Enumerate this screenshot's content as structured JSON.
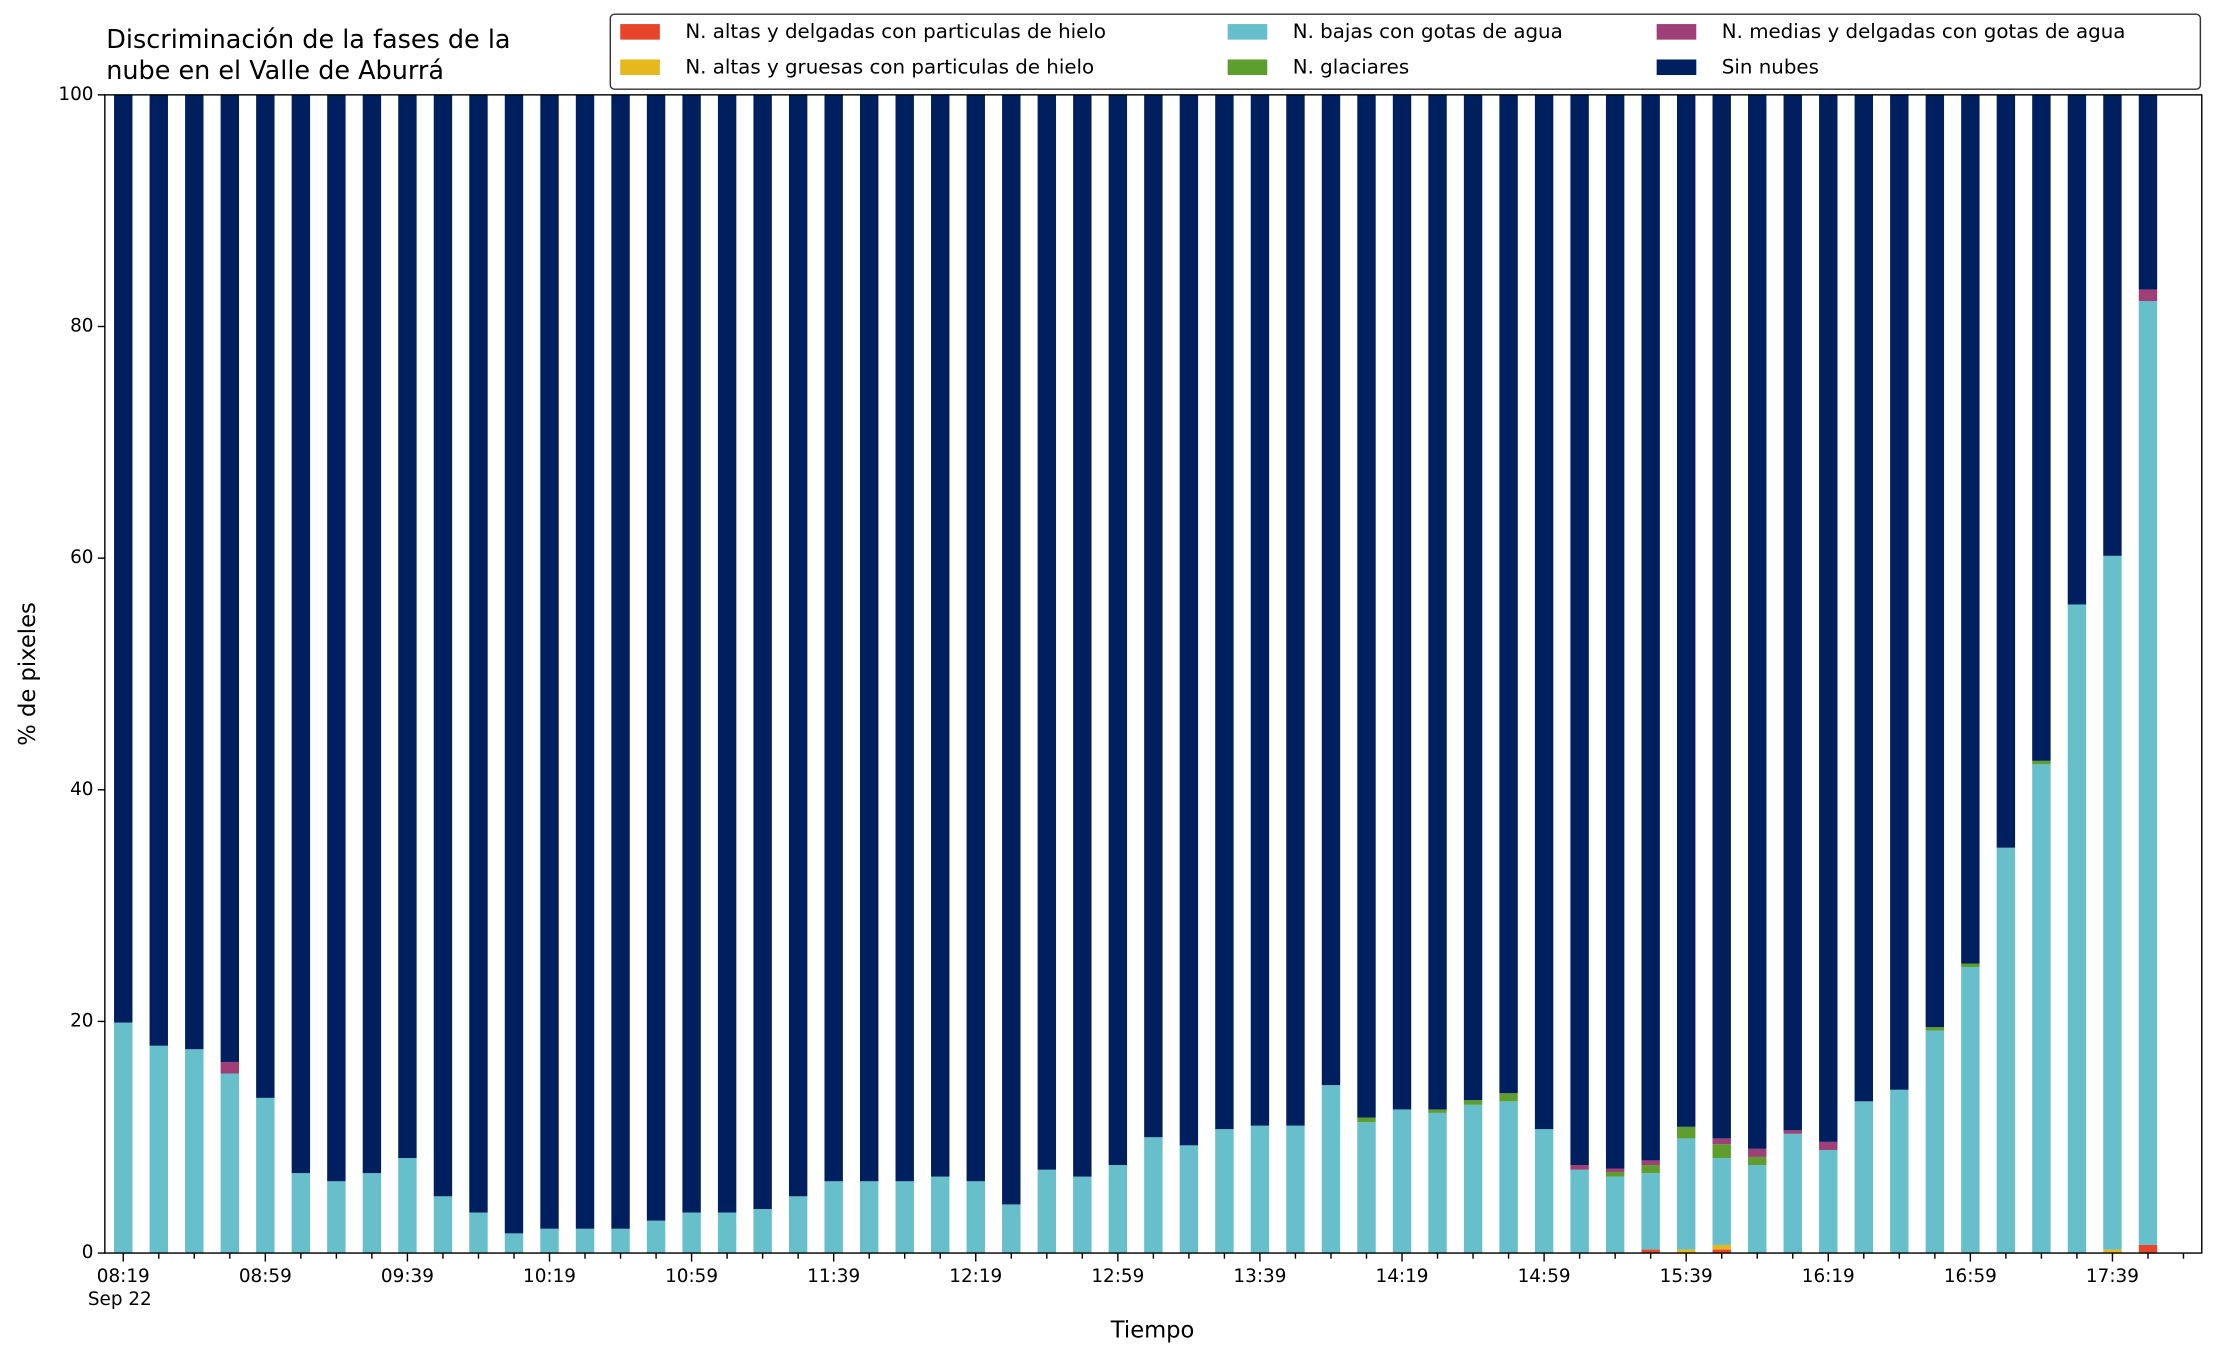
{
  "chart_data": {
    "type": "stacked_bar",
    "title": [
      "Discriminación de la fases de la",
      "nube en el Valle de Aburrá"
    ],
    "xlabel": "Tiempo",
    "ylabel": "% de pixeles",
    "categories": [
      "08:19",
      null,
      null,
      null,
      "08:59",
      null,
      null,
      null,
      "09:39",
      null,
      null,
      null,
      "10:19",
      null,
      null,
      null,
      "10:59",
      null,
      null,
      null,
      "11:39",
      null,
      null,
      null,
      "12:19",
      null,
      null,
      null,
      "12:59",
      null,
      null,
      null,
      "13:39",
      null,
      null,
      null,
      "14:19",
      null,
      null,
      null,
      "14:59",
      null,
      null,
      null,
      "15:39",
      null,
      null,
      null,
      "16:19",
      null,
      null,
      null,
      "16:59",
      null,
      null,
      null,
      "17:39",
      null
    ],
    "date_label": "Sep 22",
    "ylim": [
      0,
      100
    ],
    "yticks": [
      0,
      20,
      40,
      60,
      80,
      100
    ],
    "series": [
      {
        "name": "N. altas y delgadas con particulas de hielo",
        "color": "#e8462a",
        "values": [
          0,
          0,
          0,
          0,
          0,
          0,
          0,
          0,
          0,
          0,
          0,
          0,
          0,
          0,
          0,
          0,
          0,
          0,
          0,
          0,
          0,
          0,
          0,
          0,
          0,
          0,
          0,
          0,
          0,
          0,
          0,
          0,
          0,
          0,
          0,
          0,
          0,
          0,
          0,
          0,
          0,
          0,
          0,
          0.3,
          0,
          0.3,
          0,
          0,
          0,
          0,
          0,
          0,
          0,
          0,
          0,
          0,
          0,
          0.7
        ]
      },
      {
        "name": "N. altas y gruesas con particulas de hielo",
        "color": "#e6b81e",
        "values": [
          0,
          0,
          0,
          0,
          0,
          0,
          0,
          0,
          0,
          0,
          0,
          0,
          0,
          0,
          0,
          0,
          0,
          0,
          0,
          0,
          0,
          0,
          0,
          0,
          0,
          0,
          0,
          0,
          0,
          0,
          0,
          0,
          0,
          0,
          0,
          0,
          0,
          0,
          0,
          0,
          0,
          0,
          0,
          0,
          0.3,
          0.4,
          0,
          0,
          0,
          0,
          0,
          0,
          0,
          0,
          0,
          0,
          0.3,
          0
        ]
      },
      {
        "name": "N. bajas con gotas de agua",
        "color": "#66bfcb",
        "values": [
          19.9,
          17.9,
          17.6,
          15.5,
          13.4,
          6.9,
          6.2,
          6.9,
          8.2,
          4.9,
          3.5,
          1.7,
          2.1,
          2.1,
          2.1,
          2.8,
          3.5,
          3.5,
          3.8,
          4.9,
          6.2,
          6.2,
          6.2,
          6.6,
          6.2,
          4.2,
          7.2,
          6.6,
          7.6,
          10.0,
          9.3,
          10.7,
          11.0,
          11.0,
          14.5,
          11.3,
          12.4,
          12.1,
          12.8,
          13.1,
          10.7,
          7.2,
          6.6,
          6.6,
          9.6,
          7.5,
          7.6,
          10.3,
          8.9,
          13.1,
          14.1,
          19.2,
          24.7,
          35.0,
          42.2,
          56.0,
          59.9,
          81.5
        ]
      },
      {
        "name": "N. glaciares",
        "color": "#5d9e2f",
        "values": [
          0,
          0,
          0,
          0,
          0,
          0,
          0,
          0,
          0,
          0,
          0,
          0,
          0,
          0,
          0,
          0,
          0,
          0,
          0,
          0,
          0,
          0,
          0,
          0,
          0,
          0,
          0,
          0,
          0,
          0,
          0,
          0,
          0,
          0,
          0,
          0.4,
          0,
          0.3,
          0.4,
          0.7,
          0,
          0,
          0.4,
          0.7,
          1.0,
          1.2,
          0.7,
          0,
          0,
          0,
          0,
          0.3,
          0.3,
          0,
          0.3,
          0,
          0,
          0
        ]
      },
      {
        "name": "N. medias y delgadas con gotas de agua",
        "color": "#9e3f77",
        "values": [
          0,
          0,
          0,
          1.0,
          0,
          0,
          0,
          0,
          0,
          0,
          0,
          0,
          0,
          0,
          0,
          0,
          0,
          0,
          0,
          0,
          0,
          0,
          0,
          0,
          0,
          0,
          0,
          0,
          0,
          0,
          0,
          0,
          0,
          0,
          0,
          0,
          0,
          0,
          0,
          0,
          0,
          0.4,
          0.3,
          0.4,
          0,
          0.5,
          0.7,
          0.3,
          0.7,
          0,
          0,
          0,
          0,
          0,
          0,
          0,
          0,
          1.0
        ]
      },
      {
        "name": "Sin nubes",
        "color": "#001f5f",
        "values": [
          80.1,
          82.1,
          82.4,
          83.5,
          86.6,
          93.1,
          93.8,
          93.1,
          91.8,
          95.1,
          96.5,
          98.3,
          97.9,
          97.9,
          97.9,
          97.2,
          96.5,
          96.5,
          96.2,
          95.1,
          93.8,
          93.8,
          93.8,
          93.4,
          93.8,
          95.8,
          92.8,
          93.4,
          92.4,
          90.0,
          90.7,
          89.3,
          89.0,
          89.0,
          85.5,
          88.3,
          87.6,
          87.6,
          86.8,
          86.2,
          89.3,
          92.4,
          92.7,
          92.0,
          89.1,
          90.1,
          91.0,
          89.4,
          90.4,
          86.9,
          85.9,
          80.5,
          75.0,
          65.0,
          57.5,
          44.0,
          39.8,
          16.8
        ]
      }
    ]
  }
}
